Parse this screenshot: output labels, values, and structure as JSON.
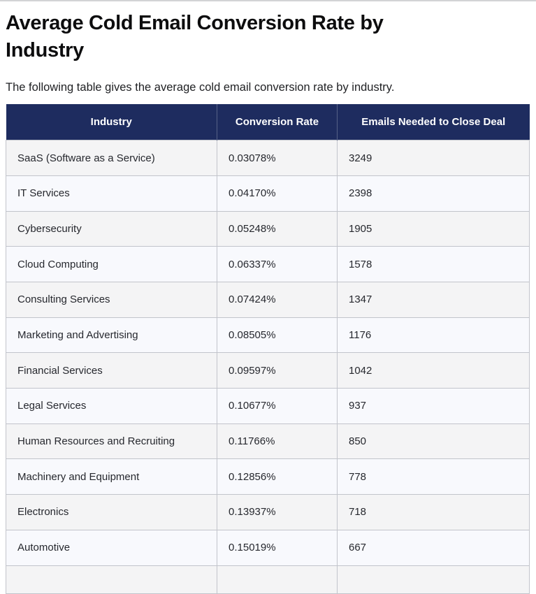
{
  "page": {
    "title": "Average Cold Email Conversion Rate by Industry",
    "description": "The following table gives the average cold email conversion rate by industry."
  },
  "table": {
    "columns": [
      "Industry",
      "Conversion Rate",
      "Emails Needed to Close Deal"
    ],
    "rows": [
      [
        "SaaS (Software as a Service)",
        "0.03078%",
        "3249"
      ],
      [
        "IT Services",
        "0.04170%",
        "2398"
      ],
      [
        "Cybersecurity",
        "0.05248%",
        "1905"
      ],
      [
        "Cloud Computing",
        "0.06337%",
        "1578"
      ],
      [
        "Consulting Services",
        "0.07424%",
        "1347"
      ],
      [
        "Marketing and Advertising",
        "0.08505%",
        "1176"
      ],
      [
        "Financial Services",
        "0.09597%",
        "1042"
      ],
      [
        "Legal Services",
        "0.10677%",
        "937"
      ],
      [
        "Human Resources and Recruiting",
        "0.11766%",
        "850"
      ],
      [
        "Machinery and Equipment",
        "0.12856%",
        "778"
      ],
      [
        "Electronics",
        "0.13937%",
        "718"
      ],
      [
        "Automotive",
        "0.15019%",
        "667"
      ]
    ]
  },
  "colors": {
    "header_bg": "#1e2c5f",
    "header_text": "#ffffff",
    "row_odd_bg": "#f4f4f5",
    "row_even_bg": "#f8f9fd",
    "border": "#c2c4cb",
    "title_text": "#0d0d0e",
    "body_text": "#26282e"
  },
  "chart_data": {
    "type": "table",
    "title": "Average Cold Email Conversion Rate by Industry",
    "columns": [
      "Industry",
      "Conversion Rate",
      "Emails Needed to Close Deal"
    ],
    "conversion_rate_pct": [
      0.03078,
      0.0417,
      0.05248,
      0.06337,
      0.07424,
      0.08505,
      0.09597,
      0.10677,
      0.11766,
      0.12856,
      0.13937,
      0.15019
    ],
    "emails_needed": [
      3249,
      2398,
      1905,
      1578,
      1347,
      1176,
      1042,
      937,
      850,
      778,
      718,
      667
    ],
    "industries": [
      "SaaS (Software as a Service)",
      "IT Services",
      "Cybersecurity",
      "Cloud Computing",
      "Consulting Services",
      "Marketing and Advertising",
      "Financial Services",
      "Legal Services",
      "Human Resources and Recruiting",
      "Machinery and Equipment",
      "Electronics",
      "Automotive"
    ]
  }
}
